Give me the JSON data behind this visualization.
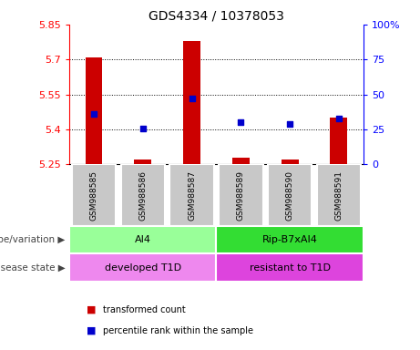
{
  "title": "GDS4334 / 10378053",
  "samples": [
    "GSM988585",
    "GSM988586",
    "GSM988587",
    "GSM988589",
    "GSM988590",
    "GSM988591"
  ],
  "bar_values": [
    5.71,
    5.27,
    5.78,
    5.28,
    5.27,
    5.45
  ],
  "bar_bottom": 5.25,
  "dot_values": [
    5.465,
    5.405,
    5.535,
    5.43,
    5.425,
    5.448
  ],
  "ylim": [
    5.25,
    5.85
  ],
  "yticks_left": [
    5.25,
    5.4,
    5.55,
    5.7,
    5.85
  ],
  "yticks_right_labels": [
    "0",
    "25",
    "50",
    "75",
    "100%"
  ],
  "yticks_right_pct": [
    0,
    25,
    50,
    75,
    100
  ],
  "bar_color": "#cc0000",
  "dot_color": "#0000cc",
  "genotype_groups": [
    {
      "label": "AI4",
      "samples": [
        0,
        1,
        2
      ],
      "color": "#99ff99"
    },
    {
      "label": "Rip-B7xAI4",
      "samples": [
        3,
        4,
        5
      ],
      "color": "#33dd33"
    }
  ],
  "disease_groups": [
    {
      "label": "developed T1D",
      "samples": [
        0,
        1,
        2
      ],
      "color": "#ee88ee"
    },
    {
      "label": "resistant to T1D",
      "samples": [
        3,
        4,
        5
      ],
      "color": "#dd44dd"
    }
  ],
  "legend_red_label": "transformed count",
  "legend_blue_label": "percentile rank within the sample",
  "label_genotype": "genotype/variation",
  "label_disease": "disease state",
  "sample_box_color": "#c8c8c8"
}
